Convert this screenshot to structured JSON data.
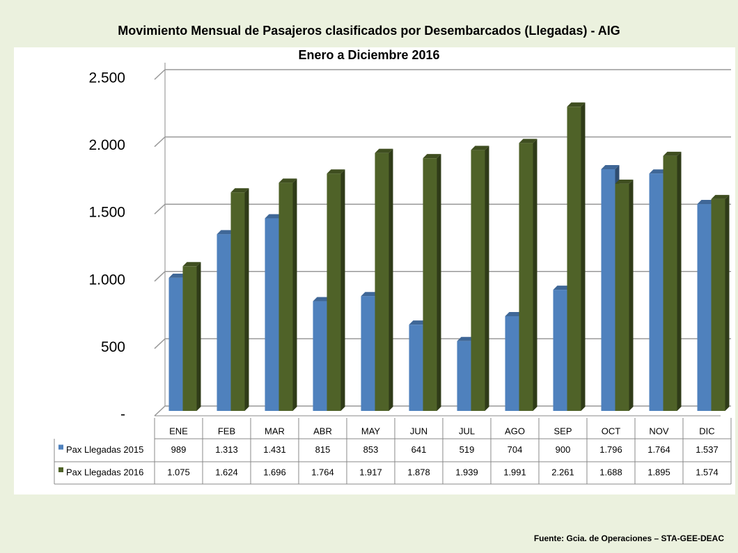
{
  "chart_data": {
    "type": "bar",
    "title": "Movimiento Mensual de Pasajeros clasificados por Desembarcados (Llegadas) - AIG",
    "subtitle": "Enero a Diciembre   2016",
    "categories": [
      "ENE",
      "FEB",
      "MAR",
      "ABR",
      "MAY",
      "JUN",
      "JUL",
      "AGO",
      "SEP",
      "OCT",
      "NOV",
      "DIC"
    ],
    "series": [
      {
        "name": "Pax Llegadas 2015",
        "color": "#4f81bd",
        "values": [
          989,
          1313,
          1431,
          815,
          853,
          641,
          519,
          704,
          900,
          1796,
          1764,
          1537
        ],
        "value_labels": [
          "989",
          "1.313",
          "1.431",
          "815",
          "853",
          "641",
          "519",
          "704",
          "900",
          "1.796",
          "1.764",
          "1.537"
        ]
      },
      {
        "name": "Pax Llegadas 2016",
        "color": "#4f6228",
        "values": [
          1075,
          1624,
          1696,
          1764,
          1917,
          1878,
          1939,
          1991,
          2261,
          1688,
          1895,
          1574
        ],
        "value_labels": [
          "1.075",
          "1.624",
          "1.696",
          "1.764",
          "1.917",
          "1.878",
          "1.939",
          "1.991",
          "2.261",
          "1.688",
          "1.895",
          "1.574"
        ]
      }
    ],
    "ylim": [
      0,
      2500
    ],
    "yticks": [
      {
        "value": 0,
        "label": "-"
      },
      500,
      {
        "value": 1000,
        "label": "1.000"
      },
      {
        "value": 1500,
        "label": "1.500"
      },
      {
        "value": 2000,
        "label": "2.000"
      },
      {
        "value": 2500,
        "label": "2.500"
      }
    ],
    "grid": true,
    "source": "Fuente: Gcia. de Operaciones – STA-GEE-DEAC"
  }
}
